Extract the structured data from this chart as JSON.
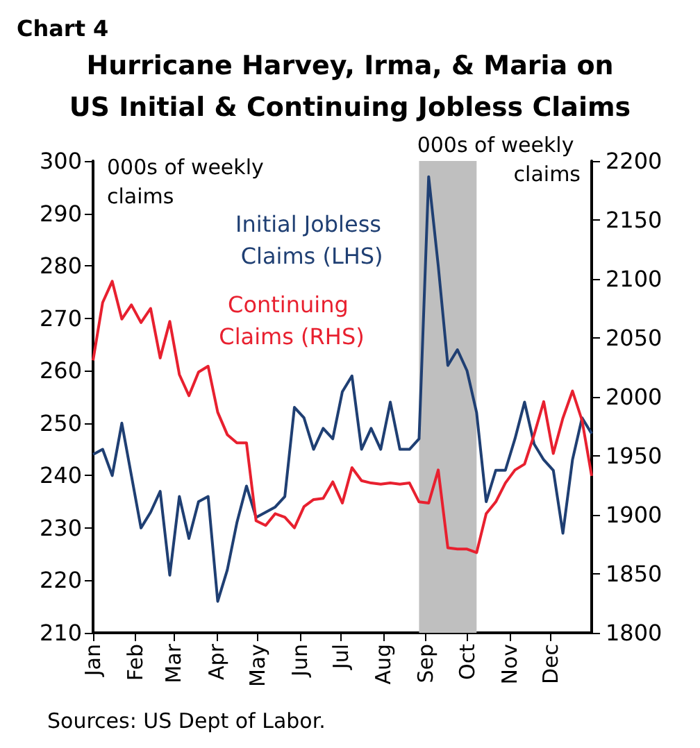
{
  "chart_data": {
    "type": "line",
    "title": "Hurricane Harvey, Irma, & Maria on US Initial & Continuing Jobless Claims",
    "annotations": [
      "Chart 4",
      "000s of weekly claims",
      "000s of weekly claims",
      "Sources: US Dept of Labor."
    ],
    "x": [
      "--01-01",
      "--01-08",
      "--01-15",
      "--01-22",
      "--01-29",
      "--02-05",
      "--02-12",
      "--02-19",
      "--02-26",
      "--03-05",
      "--03-12",
      "--03-19",
      "--03-26",
      "--04-02",
      "--04-09",
      "--04-16",
      "--04-23",
      "--04-30",
      "--05-07",
      "--05-14",
      "--05-21",
      "--05-28",
      "--06-04",
      "--06-11",
      "--06-18",
      "--06-25",
      "--07-02",
      "--07-09",
      "--07-16",
      "--07-23",
      "--07-30",
      "--08-06",
      "--08-13",
      "--08-20",
      "--08-27",
      "--09-03",
      "--09-10",
      "--09-17",
      "--09-24",
      "--10-01",
      "--10-08",
      "--10-15",
      "--10-22",
      "--10-29",
      "--11-05",
      "--11-12",
      "--11-19",
      "--11-26",
      "--12-03",
      "--12-10",
      "--12-17",
      "--12-24",
      "--12-31"
    ],
    "series": [
      {
        "name": "Initial Jobless Claims (LHS)",
        "color": "#1f3f73",
        "values": [
          244,
          245,
          240,
          250,
          240,
          230,
          233,
          237,
          221,
          236,
          228,
          235,
          236,
          216,
          222,
          231,
          238,
          232,
          233,
          234,
          236,
          253,
          251,
          245,
          249,
          247,
          256,
          259,
          245,
          249,
          245,
          254,
          245,
          245,
          247,
          297,
          280,
          261,
          264,
          260,
          252,
          235,
          241,
          241,
          247,
          254,
          246,
          243,
          241,
          229,
          243,
          251,
          248
        ]
      },
      {
        "name": "Continuing Claims (RHS)",
        "color": "#e8202f",
        "axis": "y2",
        "values": [
          2031,
          2080,
          2098,
          2066,
          2078,
          2063,
          2075,
          2033,
          2064,
          2019,
          2001,
          2021,
          2026,
          1987,
          1968,
          1961,
          1961,
          1895,
          1891,
          1901,
          1898,
          1889,
          1907,
          1913,
          1914,
          1928,
          1910,
          1940,
          1929,
          1927,
          1926,
          1927,
          1926,
          1927,
          1911,
          1910,
          1938,
          1872,
          1871,
          1871,
          1868,
          1901,
          1911,
          1927,
          1938,
          1943,
          1968,
          1996,
          1952,
          1982,
          2005,
          1980,
          1933
        ]
      }
    ],
    "xlim": [
      "--01-01",
      "--12-31"
    ],
    "xticks": [
      {
        "value": "--01-01",
        "label": "Jan"
      },
      {
        "value": "--02-01",
        "label": "Feb"
      },
      {
        "value": "--03-01",
        "label": "Mar"
      },
      {
        "value": "--04-01",
        "label": "Apr"
      },
      {
        "value": "--05-01",
        "label": "May"
      },
      {
        "value": "--06-01",
        "label": "Jun"
      },
      {
        "value": "--07-01",
        "label": "Jul"
      },
      {
        "value": "--08-01",
        "label": "Aug"
      },
      {
        "value": "--09-01",
        "label": "Sep"
      },
      {
        "value": "--10-01",
        "label": "Oct"
      },
      {
        "value": "--11-01",
        "label": "Nov"
      },
      {
        "value": "--12-01",
        "label": "Dec"
      }
    ],
    "ylim": [
      210,
      300
    ],
    "yticks": [
      210,
      220,
      230,
      240,
      250,
      260,
      270,
      280,
      290,
      300
    ],
    "y2lim": [
      1800,
      2200
    ],
    "y2ticks": [
      1800,
      1850,
      1900,
      1950,
      2000,
      2050,
      2100,
      2150,
      2200
    ],
    "bands": [
      {
        "axis": "x",
        "from": "--08-27",
        "to": "--10-08",
        "color": "#bfbfbf"
      }
    ],
    "grid": false,
    "legend": false
  }
}
